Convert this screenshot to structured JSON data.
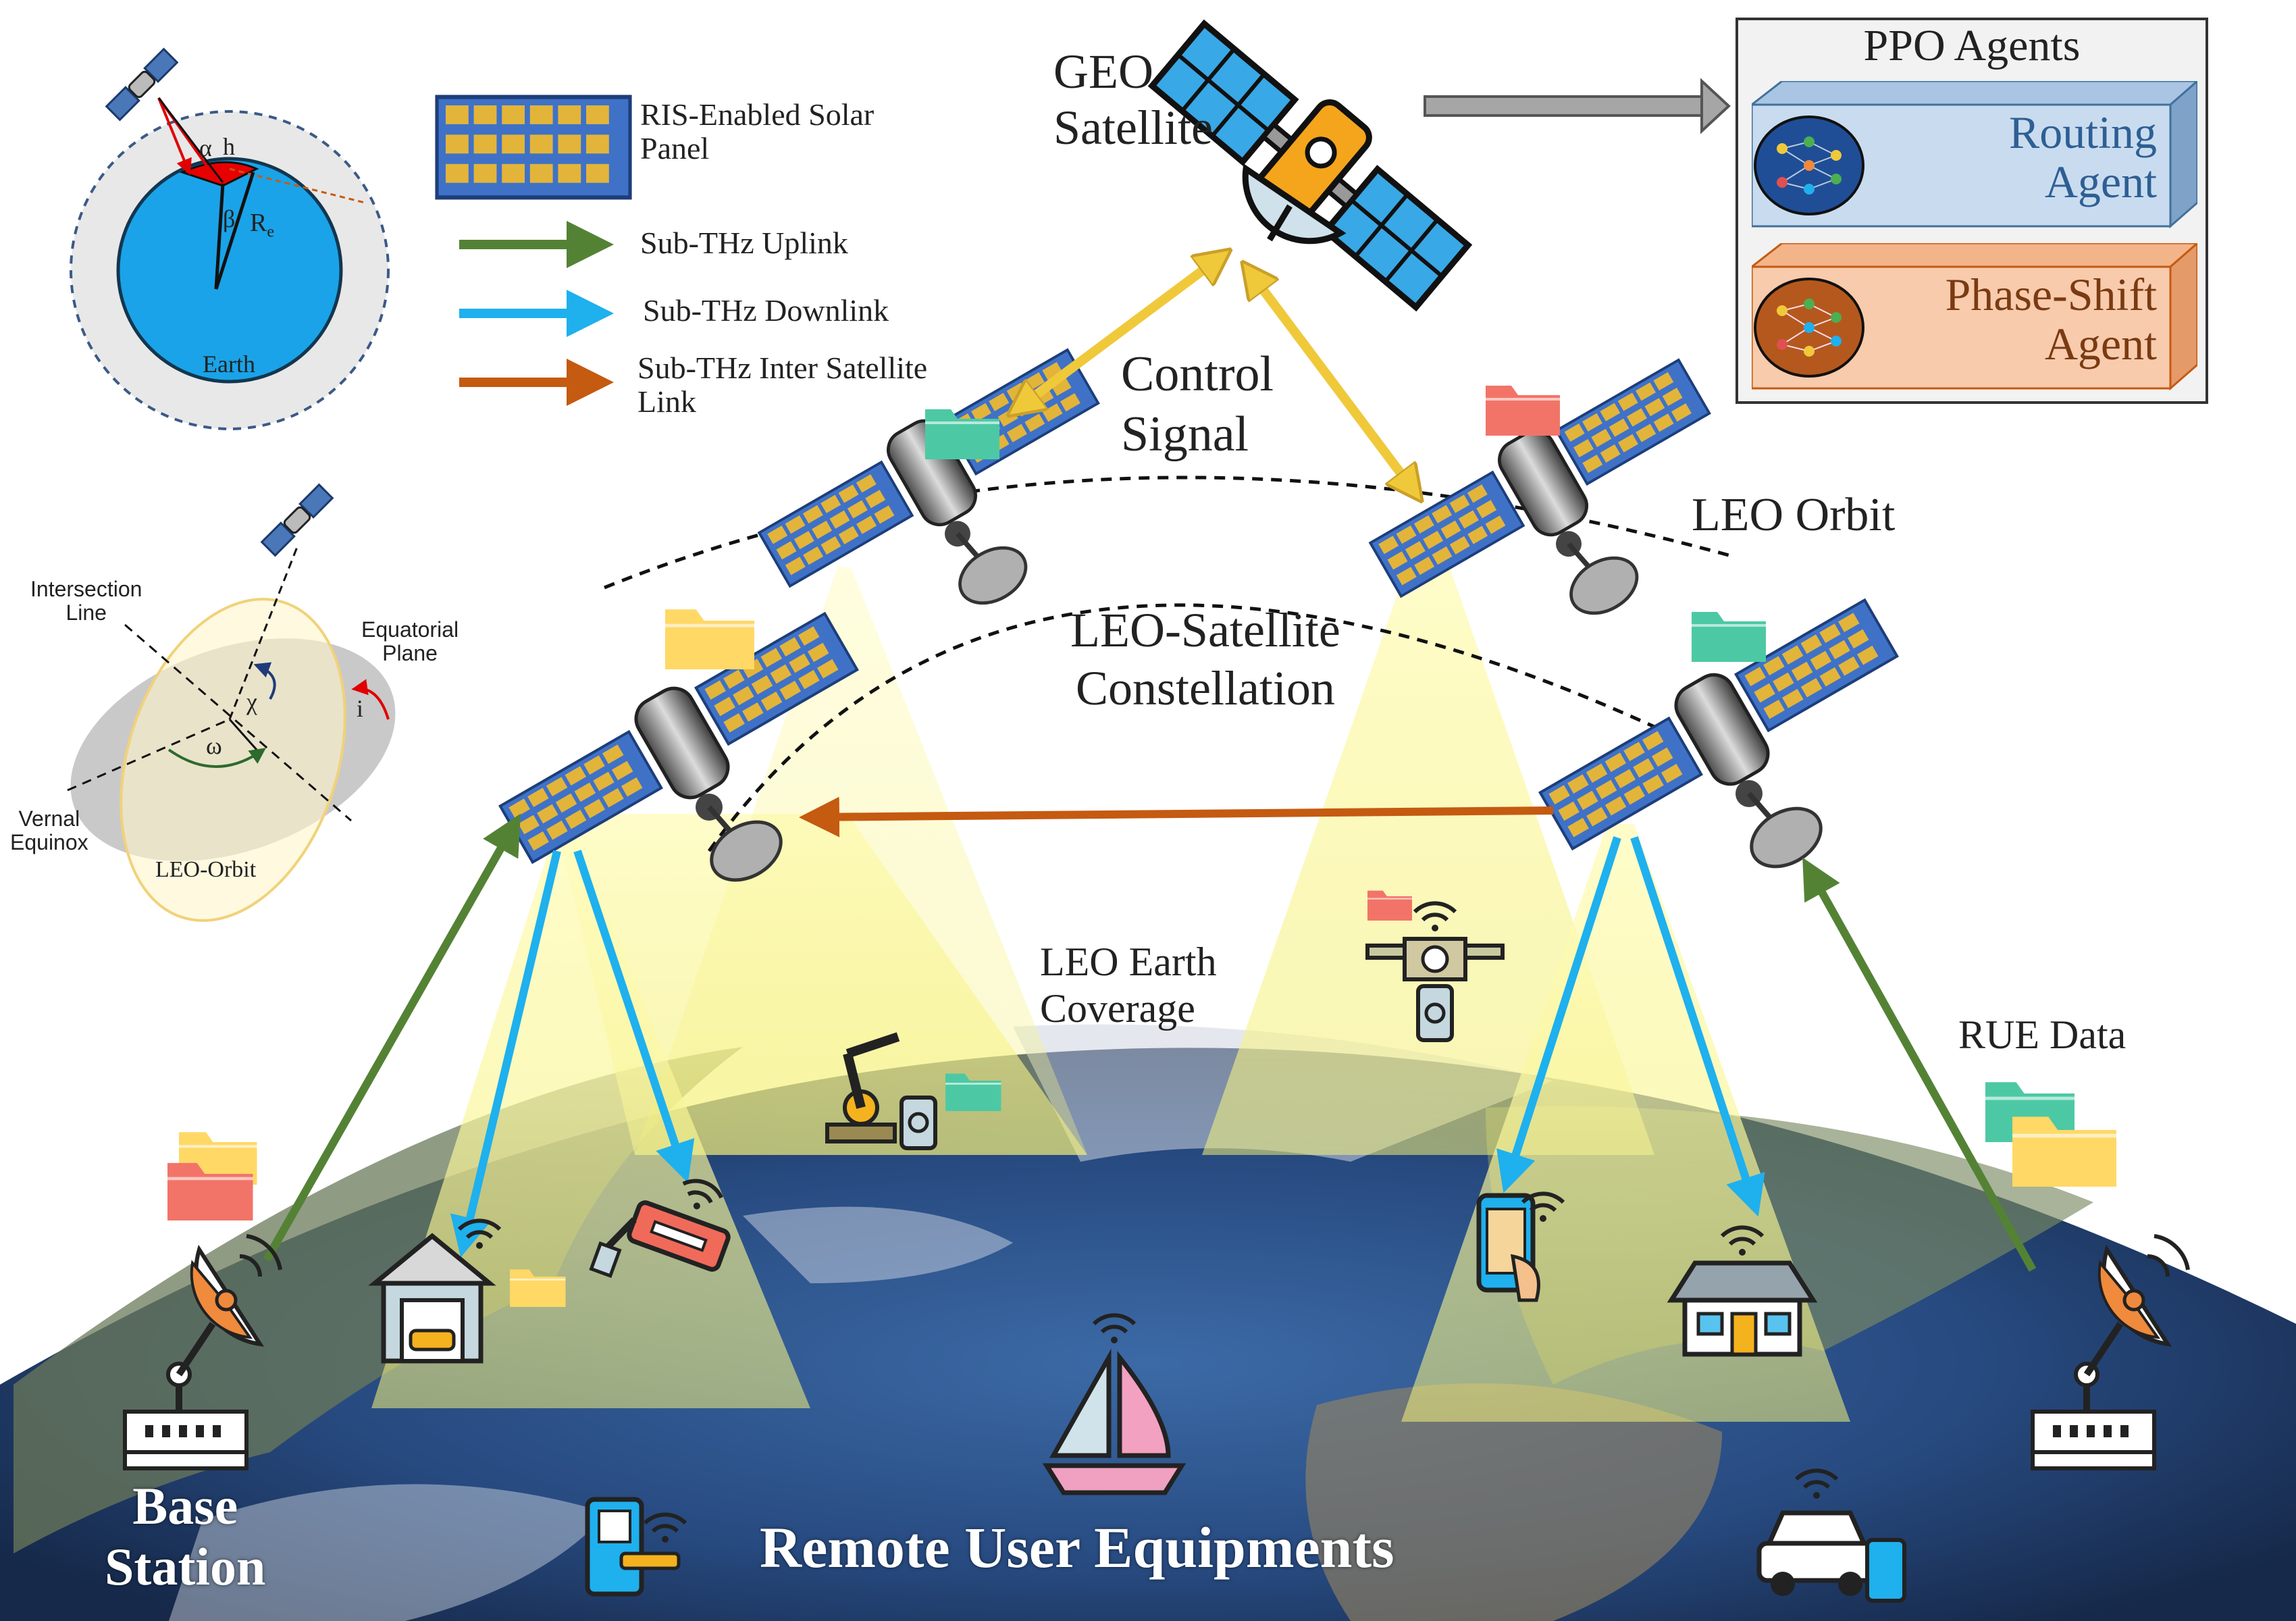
{
  "legend": {
    "ris_panel": "RIS-Enabled Solar Panel",
    "ris_panel_line2": "Panel",
    "ris_panel_line1": "RIS-Enabled Solar",
    "uplink": "Sub-THz Uplink",
    "downlink": "Sub-THz Downlink",
    "isl_line1": "Sub-THz Inter Satellite",
    "isl_line2": "Link"
  },
  "geometry_inset": {
    "alpha": "α",
    "h": "h",
    "beta": "β",
    "re": "R",
    "re_sub": "e",
    "earth": "Earth"
  },
  "orbit_inset": {
    "intersection_line1": "Intersection",
    "intersection_line2": "Line",
    "equatorial_line1": "Equatorial",
    "equatorial_line2": "Plane",
    "vernal_line1": "Vernal",
    "vernal_line2": "Equinox",
    "chi": "χ",
    "omega": "ω",
    "i": "i",
    "leo_orbit": "LEO-Orbit"
  },
  "geo": {
    "line1": "GEO",
    "line2": "Satellite"
  },
  "ppo": {
    "title": "PPO Agents",
    "routing_line1": "Routing",
    "routing_line2": "Agent",
    "phase_line1": "Phase-Shift",
    "phase_line2": "Agent"
  },
  "labels": {
    "control_line1": "Control",
    "control_line2": "Signal",
    "leo_orbit": "LEO Orbit",
    "constellation_line1": "LEO-Satellite",
    "constellation_line2": "Constellation",
    "coverage_line1": "LEO Earth",
    "coverage_line2": "Coverage",
    "rue_data": "RUE Data",
    "base_line1": "Base",
    "base_line2": "Station",
    "remote_users": "Remote User Equipments"
  },
  "colors": {
    "uplink": "#548235",
    "downlink": "#1fb0ee",
    "isl": "#c55a11",
    "control": "#f0c93a",
    "routing_box": "#c9dcef",
    "phase_box": "#f7cbac",
    "earth_ocean": "#2b4f86",
    "folder_teal": "#4cc9a4",
    "folder_yellow": "#ffd866",
    "folder_red": "#f27468"
  }
}
